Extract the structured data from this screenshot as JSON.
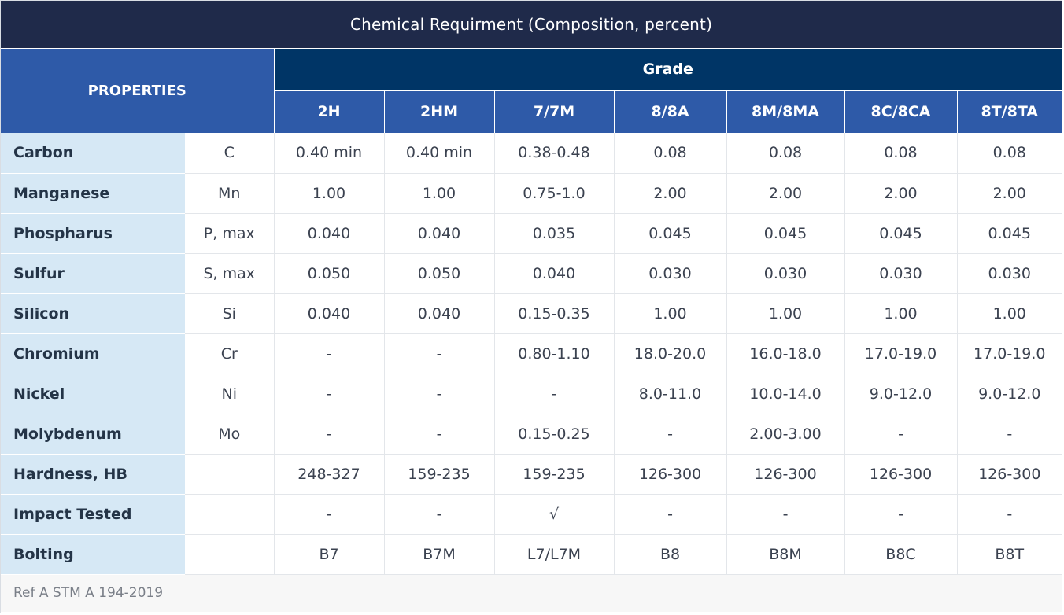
{
  "title": "Chemical Requirment (Composition, percent)",
  "properties_label": "PROPERTIES",
  "grade_label": "Grade",
  "grades": [
    "2H",
    "2HM",
    "7/7M",
    "8/8A",
    "8M/8MA",
    "8C/8CA",
    "8T/8TA"
  ],
  "rows": [
    {
      "name": "Carbon",
      "symbol": "C",
      "values": [
        "0.40 min",
        "0.40 min",
        "0.38-0.48",
        "0.08",
        "0.08",
        "0.08",
        "0.08"
      ]
    },
    {
      "name": "Manganese",
      "symbol": "Mn",
      "values": [
        "1.00",
        "1.00",
        "0.75-1.0",
        "2.00",
        "2.00",
        "2.00",
        "2.00"
      ]
    },
    {
      "name": "Phospharus",
      "symbol": "P, max",
      "values": [
        "0.040",
        "0.040",
        "0.035",
        "0.045",
        "0.045",
        "0.045",
        "0.045"
      ]
    },
    {
      "name": "Sulfur",
      "symbol": "S, max",
      "values": [
        "0.050",
        "0.050",
        "0.040",
        "0.030",
        "0.030",
        "0.030",
        "0.030"
      ]
    },
    {
      "name": "Silicon",
      "symbol": "Si",
      "values": [
        "0.040",
        "0.040",
        "0.15-0.35",
        "1.00",
        "1.00",
        "1.00",
        "1.00"
      ]
    },
    {
      "name": "Chromium",
      "symbol": "Cr",
      "values": [
        "-",
        "-",
        "0.80-1.10",
        "18.0-20.0",
        "16.0-18.0",
        "17.0-19.0",
        "17.0-19.0"
      ]
    },
    {
      "name": "Nickel",
      "symbol": "Ni",
      "values": [
        "-",
        "-",
        "-",
        "8.0-11.0",
        "10.0-14.0",
        "9.0-12.0",
        "9.0-12.0"
      ]
    },
    {
      "name": "Molybdenum",
      "symbol": "Mo",
      "values": [
        "-",
        "-",
        "0.15-0.25",
        "-",
        "2.00-3.00",
        "-",
        "-"
      ]
    },
    {
      "name": "Hardness, HB",
      "symbol": "",
      "values": [
        "248-327",
        "159-235",
        "159-235",
        "126-300",
        "126-300",
        "126-300",
        "126-300"
      ]
    },
    {
      "name": "Impact Tested",
      "symbol": "",
      "values": [
        "-",
        "-",
        "√",
        "-",
        "-",
        "-",
        "-"
      ]
    },
    {
      "name": "Bolting",
      "symbol": "",
      "values": [
        "B7",
        "B7M",
        "L7/L7M",
        "B8",
        "B8M",
        "B8C",
        "B8T"
      ]
    }
  ],
  "reference": "Ref A STM A 194-2019"
}
